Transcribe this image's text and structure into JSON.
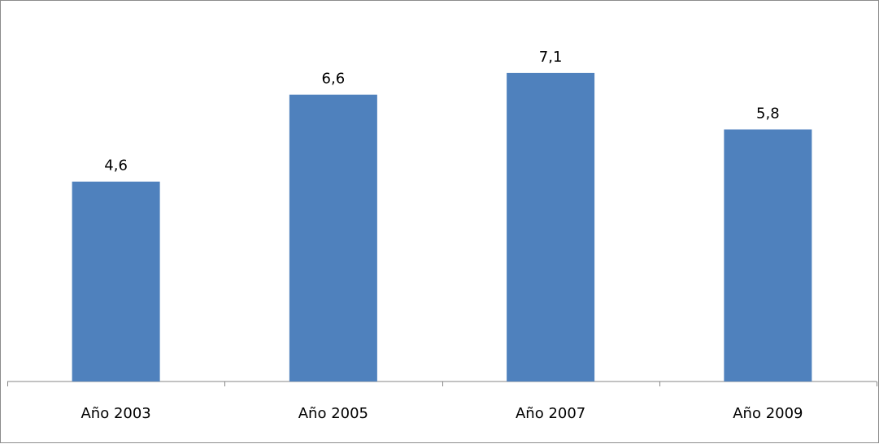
{
  "chart_data": {
    "type": "bar",
    "categories": [
      "Año 2003",
      "Año 2005",
      "Año 2007",
      "Año 2009"
    ],
    "values": [
      4.6,
      6.6,
      7.1,
      5.8
    ],
    "value_labels": [
      "4,6",
      "6,6",
      "7,1",
      "5,8"
    ],
    "title": "",
    "xlabel": "",
    "ylabel": "",
    "ylim": [
      0,
      8.2
    ],
    "grid": false,
    "bar_color": "#4f81bd",
    "axis_color": "#868686"
  }
}
